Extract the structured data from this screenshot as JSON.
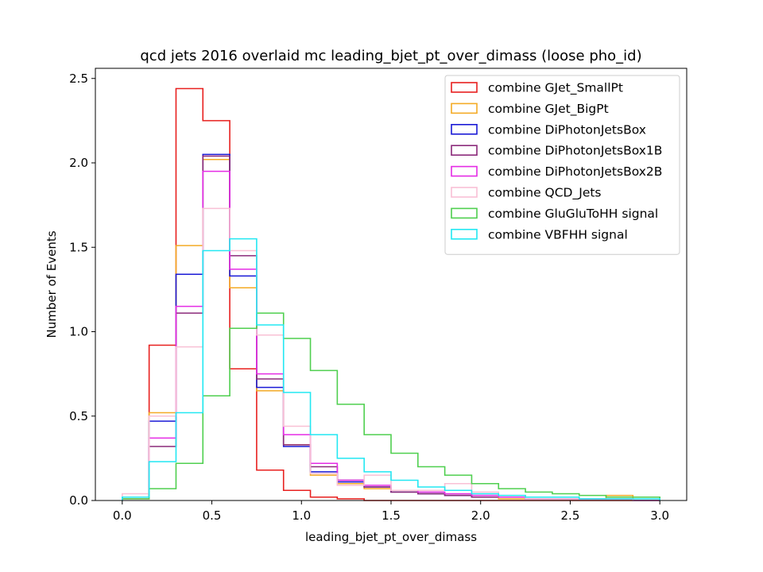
{
  "chart_data": {
    "type": "histogram-step",
    "title": "qcd jets 2016 overlaid mc leading_bjet_pt_over_dimass (loose pho_id)",
    "xlabel": "leading_bjet_pt_over_dimass",
    "ylabel": "Number of Events",
    "xlim": [
      -0.15,
      3.15
    ],
    "ylim": [
      0,
      2.56
    ],
    "xticks": [
      0.0,
      0.5,
      1.0,
      1.5,
      2.0,
      2.5,
      3.0
    ],
    "xtick_labels": [
      "0.0",
      "0.5",
      "1.0",
      "1.5",
      "2.0",
      "2.5",
      "3.0"
    ],
    "yticks": [
      0.0,
      0.5,
      1.0,
      1.5,
      2.0,
      2.5
    ],
    "ytick_labels": [
      "0.0",
      "0.5",
      "1.0",
      "1.5",
      "2.0",
      "2.5"
    ],
    "legend_position": "upper right",
    "bin_edges": [
      0.0,
      0.15,
      0.3,
      0.45,
      0.6,
      0.75,
      0.9,
      1.05,
      1.2,
      1.35,
      1.5,
      1.65,
      1.8,
      1.95,
      2.1,
      2.25,
      2.4,
      2.55,
      2.7,
      2.85,
      3.0
    ],
    "series": [
      {
        "name": "combine GJet_SmallPt",
        "color": "#e8201f",
        "values": [
          0.01,
          0.92,
          2.44,
          2.25,
          0.78,
          0.18,
          0.06,
          0.02,
          0.01,
          0.0,
          0.0,
          0.0,
          0.0,
          0.0,
          0.0,
          0.0,
          0.0,
          0.0,
          0.0,
          0.0
        ]
      },
      {
        "name": "combine GJet_BigPt",
        "color": "#f4ab25",
        "values": [
          0.02,
          0.52,
          1.51,
          2.02,
          1.26,
          0.65,
          0.33,
          0.15,
          0.1,
          0.07,
          0.05,
          0.04,
          0.03,
          0.02,
          0.01,
          0.01,
          0.01,
          0.01,
          0.03,
          0.0
        ]
      },
      {
        "name": "combine DiPhotonJetsBox",
        "color": "#1a1ad6",
        "values": [
          0.02,
          0.47,
          1.34,
          2.05,
          1.33,
          0.67,
          0.32,
          0.17,
          0.11,
          0.08,
          0.05,
          0.04,
          0.03,
          0.02,
          0.02,
          0.01,
          0.01,
          0.01,
          0.01,
          0.0
        ]
      },
      {
        "name": "combine DiPhotonJetsBox1B",
        "color": "#8b2a7a",
        "values": [
          0.02,
          0.32,
          1.11,
          2.04,
          1.45,
          0.72,
          0.33,
          0.2,
          0.12,
          0.08,
          0.05,
          0.04,
          0.03,
          0.02,
          0.02,
          0.01,
          0.01,
          0.01,
          0.01,
          0.0
        ]
      },
      {
        "name": "combine DiPhotonJetsBox2B",
        "color": "#e52ce5",
        "values": [
          0.02,
          0.37,
          1.15,
          1.95,
          1.37,
          0.75,
          0.39,
          0.22,
          0.12,
          0.09,
          0.06,
          0.05,
          0.04,
          0.03,
          0.02,
          0.01,
          0.01,
          0.01,
          0.01,
          0.0
        ]
      },
      {
        "name": "combine QCD_Jets",
        "color": "#f9c0d5",
        "values": [
          0.04,
          0.5,
          0.91,
          1.73,
          1.48,
          0.98,
          0.44,
          0.16,
          0.09,
          0.15,
          0.06,
          0.06,
          0.1,
          0.05,
          0.03,
          0.01,
          0.01,
          0.01,
          0.01,
          0.0
        ]
      },
      {
        "name": "combine GluGluToHH signal",
        "color": "#4fcf4f",
        "values": [
          0.01,
          0.07,
          0.22,
          0.62,
          1.02,
          1.11,
          0.96,
          0.77,
          0.57,
          0.39,
          0.28,
          0.2,
          0.15,
          0.1,
          0.07,
          0.05,
          0.04,
          0.03,
          0.02,
          0.02
        ]
      },
      {
        "name": "combine VBFHH signal",
        "color": "#22e8f2",
        "values": [
          0.02,
          0.23,
          0.52,
          1.48,
          1.55,
          1.04,
          0.64,
          0.39,
          0.25,
          0.17,
          0.12,
          0.08,
          0.06,
          0.04,
          0.03,
          0.02,
          0.02,
          0.01,
          0.01,
          0.01
        ]
      }
    ]
  }
}
